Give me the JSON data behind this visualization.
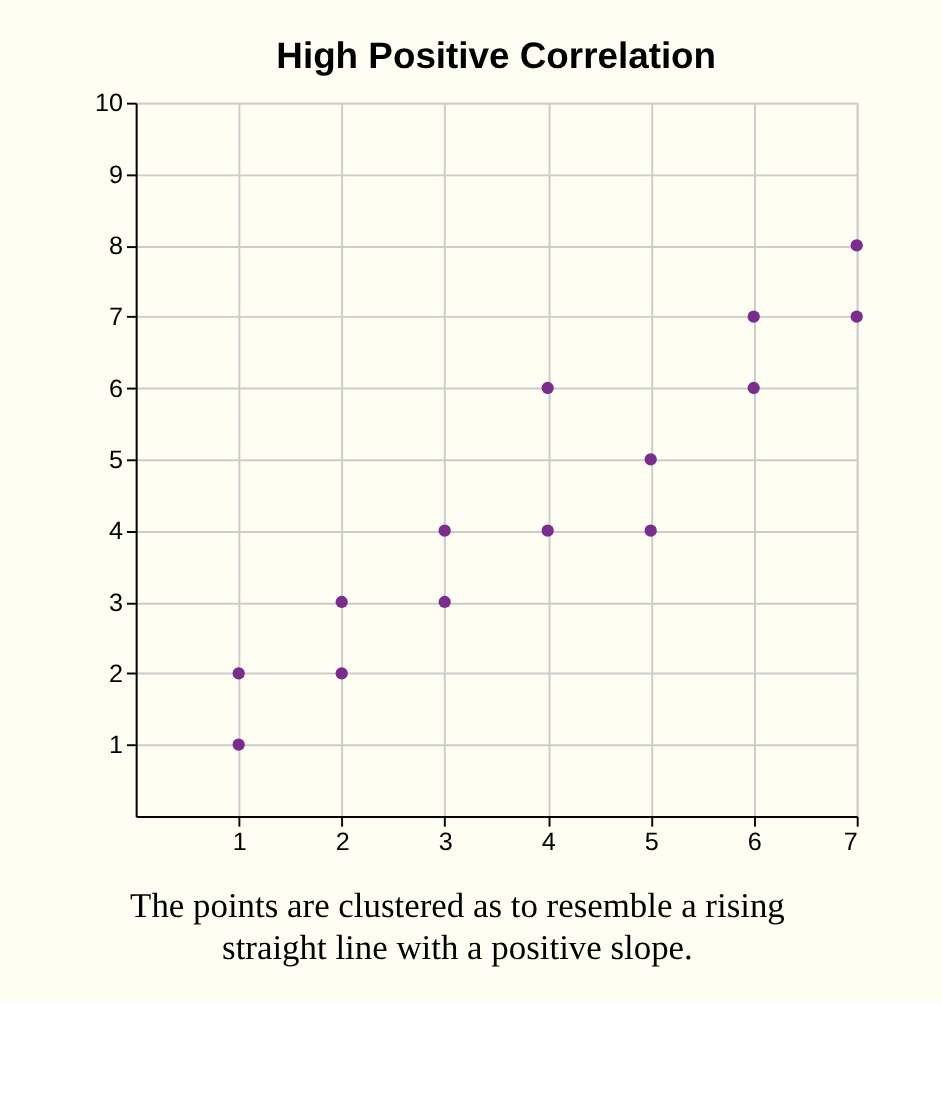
{
  "chart_data": {
    "type": "scatter",
    "title": "High Positive Correlation",
    "x": [
      1,
      1,
      2,
      2,
      3,
      3,
      4,
      4,
      5,
      5,
      6,
      6,
      7,
      7
    ],
    "series": [
      {
        "color": "#7b2d8e",
        "values": [
          1,
          2,
          2,
          3,
          3,
          4,
          4,
          6,
          4,
          5,
          6,
          7,
          7,
          8
        ]
      }
    ],
    "xlim": [
      0,
      7
    ],
    "xticks": [
      1,
      2,
      3,
      4,
      5,
      6,
      7
    ],
    "ylim": [
      0,
      10
    ],
    "yticks": [
      1,
      2,
      3,
      4,
      5,
      6,
      7,
      8,
      9,
      10
    ],
    "grid": true,
    "marker": "circle",
    "annotations": [
      "The points are clustered as to resemble a rising straight line with a positive slope."
    ]
  }
}
